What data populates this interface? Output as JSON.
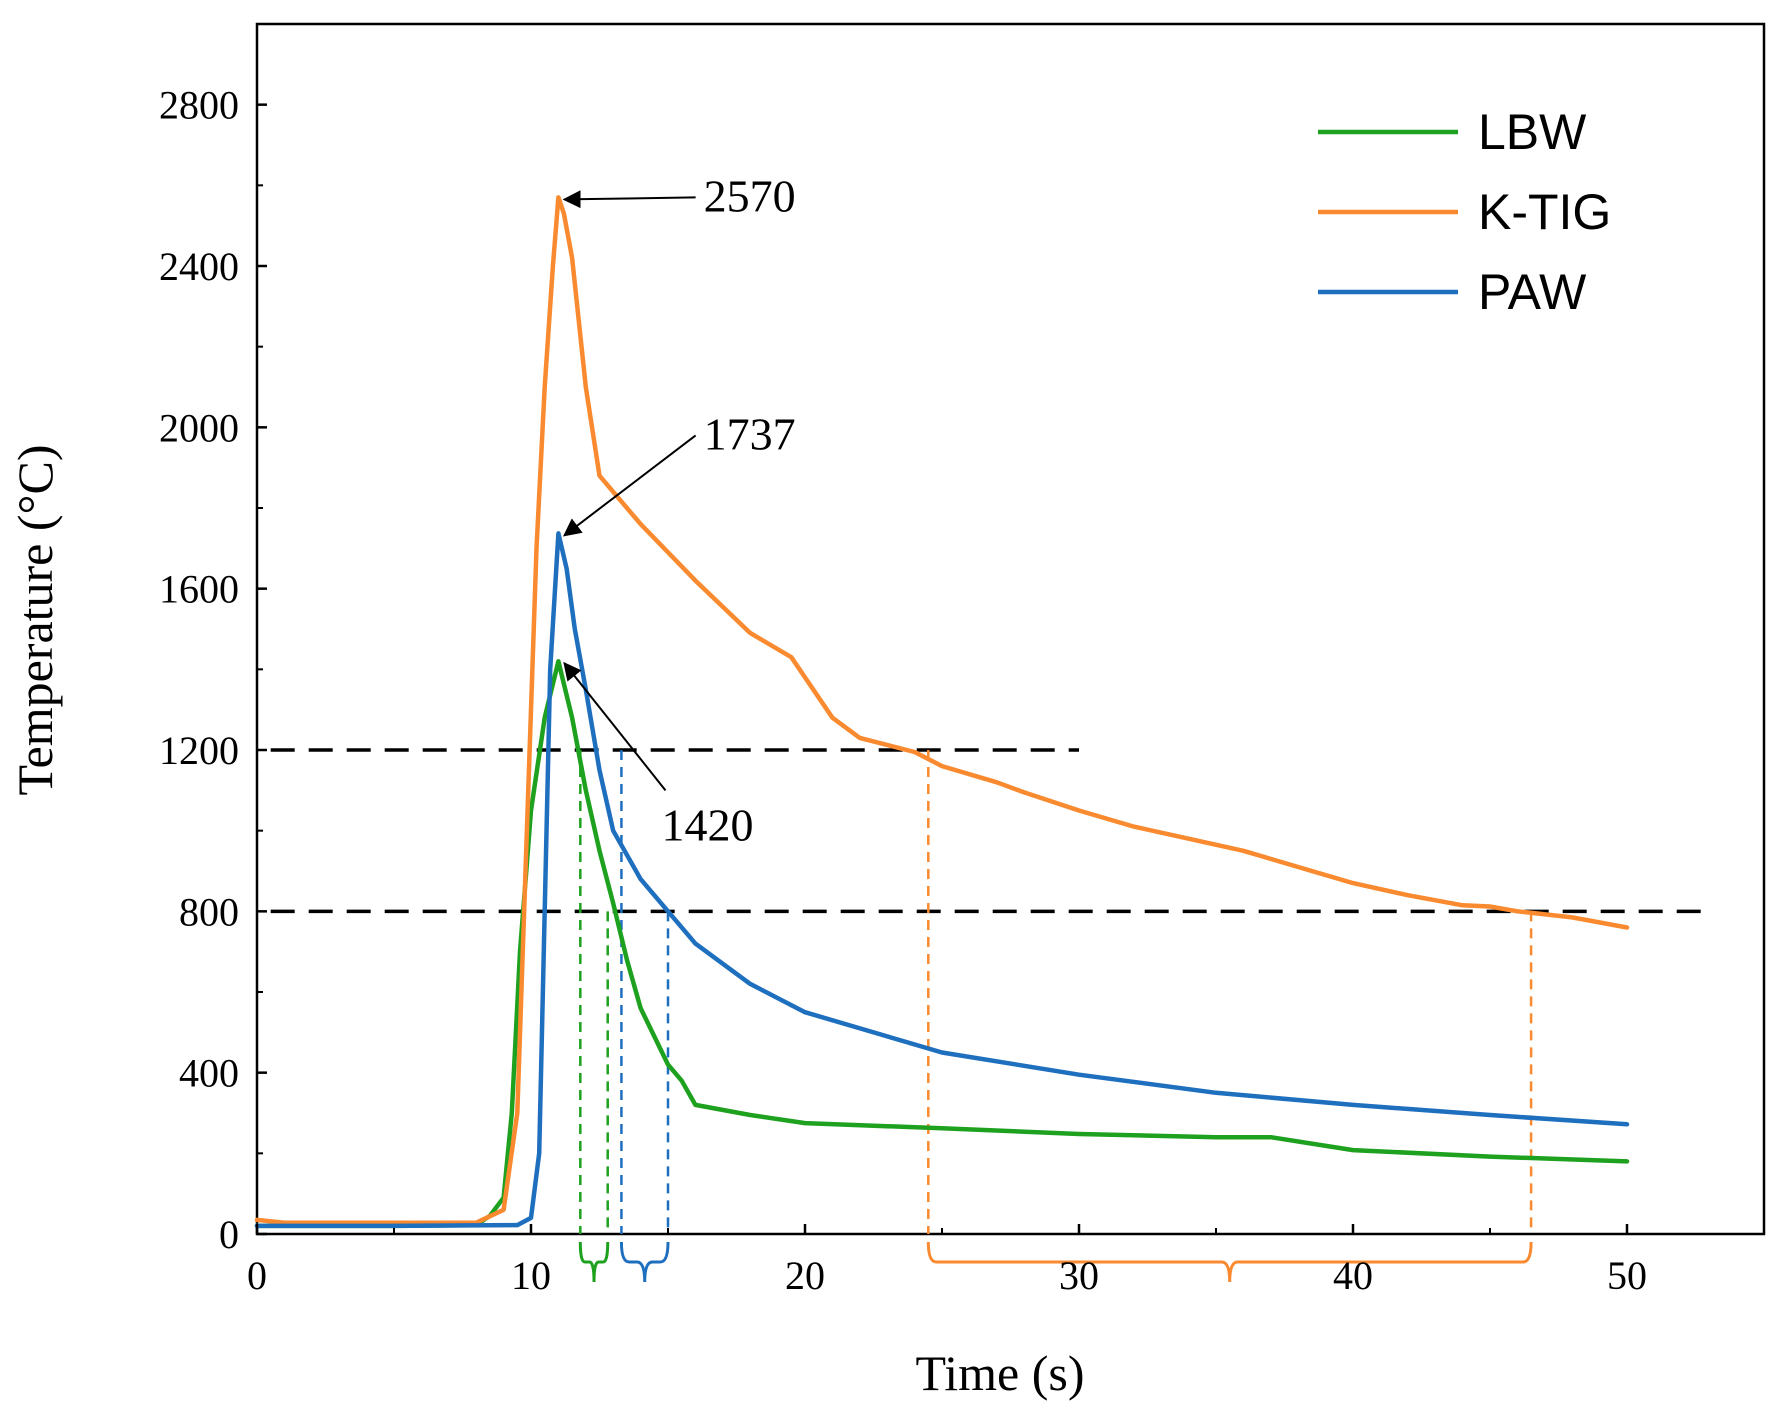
{
  "chart_data": {
    "type": "line",
    "title": "",
    "xlabel": "Time (s)",
    "ylabel": "Temperature (°C)",
    "xlim": [
      0,
      55
    ],
    "ylim": [
      0,
      3000
    ],
    "xticks": [
      0,
      10,
      20,
      30,
      40,
      50
    ],
    "yticks": [
      0,
      400,
      800,
      1200,
      1600,
      2000,
      2400,
      2800
    ],
    "grid": false,
    "legend_position": "top-right",
    "colors": {
      "LBW": "#1ea11e",
      "K-TIG": "#f98a2f",
      "PAW": "#1f6fbf"
    },
    "series": [
      {
        "name": "LBW",
        "points": [
          [
            0,
            20
          ],
          [
            5,
            20
          ],
          [
            8,
            22
          ],
          [
            8.5,
            45
          ],
          [
            9,
            90
          ],
          [
            9.3,
            300
          ],
          [
            9.6,
            700
          ],
          [
            10,
            1050
          ],
          [
            10.5,
            1280
          ],
          [
            11,
            1420
          ],
          [
            11.5,
            1280
          ],
          [
            12,
            1100
          ],
          [
            12.5,
            950
          ],
          [
            13,
            820
          ],
          [
            13.5,
            680
          ],
          [
            14,
            560
          ],
          [
            15,
            420
          ],
          [
            15.5,
            380
          ],
          [
            16,
            320
          ],
          [
            18,
            295
          ],
          [
            20,
            275
          ],
          [
            25,
            262
          ],
          [
            30,
            248
          ],
          [
            35,
            240
          ],
          [
            37,
            240
          ],
          [
            40,
            208
          ],
          [
            45,
            192
          ],
          [
            50,
            180
          ]
        ]
      },
      {
        "name": "K-TIG",
        "points": [
          [
            0,
            35
          ],
          [
            1,
            28
          ],
          [
            5,
            28
          ],
          [
            8,
            28
          ],
          [
            9,
            60
          ],
          [
            9.5,
            300
          ],
          [
            9.8,
            900
          ],
          [
            10.2,
            1700
          ],
          [
            10.5,
            2100
          ],
          [
            10.8,
            2400
          ],
          [
            11,
            2570
          ],
          [
            11.2,
            2530
          ],
          [
            11.5,
            2420
          ],
          [
            12,
            2100
          ],
          [
            12.5,
            1880
          ],
          [
            14,
            1760
          ],
          [
            16,
            1620
          ],
          [
            18,
            1490
          ],
          [
            19.5,
            1430
          ],
          [
            20,
            1380
          ],
          [
            21,
            1280
          ],
          [
            22,
            1230
          ],
          [
            24,
            1195
          ],
          [
            25,
            1160
          ],
          [
            27,
            1120
          ],
          [
            28,
            1095
          ],
          [
            30,
            1050
          ],
          [
            32,
            1010
          ],
          [
            34,
            980
          ],
          [
            36,
            950
          ],
          [
            38,
            910
          ],
          [
            40,
            870
          ],
          [
            42,
            840
          ],
          [
            44,
            815
          ],
          [
            45,
            812
          ],
          [
            46,
            800
          ],
          [
            48,
            785
          ],
          [
            50,
            760
          ]
        ]
      },
      {
        "name": "PAW",
        "points": [
          [
            0,
            20
          ],
          [
            5,
            20
          ],
          [
            9.5,
            22
          ],
          [
            10,
            40
          ],
          [
            10.3,
            200
          ],
          [
            10.5,
            800
          ],
          [
            10.7,
            1400
          ],
          [
            11,
            1737
          ],
          [
            11.3,
            1650
          ],
          [
            11.6,
            1500
          ],
          [
            12,
            1350
          ],
          [
            12.5,
            1150
          ],
          [
            13,
            1000
          ],
          [
            14,
            880
          ],
          [
            15,
            800
          ],
          [
            16,
            720
          ],
          [
            18,
            620
          ],
          [
            20,
            550
          ],
          [
            25,
            450
          ],
          [
            30,
            395
          ],
          [
            35,
            350
          ],
          [
            40,
            320
          ],
          [
            45,
            295
          ],
          [
            50,
            272
          ]
        ]
      }
    ],
    "reference_lines": [
      {
        "y": 1200,
        "x_range": [
          0.5,
          30
        ]
      },
      {
        "y": 800,
        "x_range": [
          0.5,
          53
        ]
      }
    ],
    "drop_lines": [
      {
        "series": "LBW",
        "x": 11.8,
        "y": 1200
      },
      {
        "series": "LBW",
        "x": 12.8,
        "y": 800
      },
      {
        "series": "PAW",
        "x": 13.3,
        "y": 1200
      },
      {
        "series": "PAW",
        "x": 15.0,
        "y": 800
      },
      {
        "series": "K-TIG",
        "x": 24.5,
        "y": 1200
      },
      {
        "series": "K-TIG",
        "x": 46.5,
        "y": 800
      }
    ],
    "interval_braces": [
      {
        "series": "LBW",
        "x_start": 11.8,
        "x_end": 12.8
      },
      {
        "series": "PAW",
        "x_start": 13.3,
        "x_end": 15.0
      },
      {
        "series": "K-TIG",
        "x_start": 24.5,
        "x_end": 46.5
      }
    ],
    "annotations": [
      {
        "text": "2570",
        "target": [
          11,
          2570
        ],
        "label_at": [
          16.3,
          2570
        ]
      },
      {
        "text": "1737",
        "target": [
          11,
          1737
        ],
        "label_at": [
          16.3,
          1980
        ]
      },
      {
        "text": "1420",
        "target": [
          11,
          1420
        ],
        "label_at": [
          15.2,
          1100
        ]
      }
    ]
  }
}
